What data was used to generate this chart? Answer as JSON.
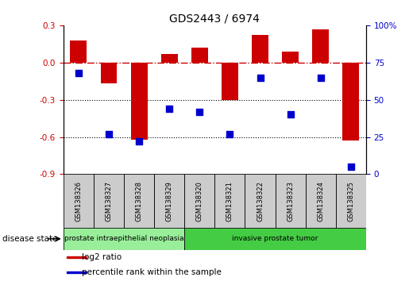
{
  "title": "GDS2443 / 6974",
  "samples": [
    "GSM138326",
    "GSM138327",
    "GSM138328",
    "GSM138329",
    "GSM138320",
    "GSM138321",
    "GSM138322",
    "GSM138323",
    "GSM138324",
    "GSM138325"
  ],
  "log2_ratio": [
    0.18,
    -0.17,
    -0.62,
    0.07,
    0.12,
    -0.3,
    0.22,
    0.09,
    0.27,
    -0.63
  ],
  "percentile_rank": [
    68,
    27,
    22,
    44,
    42,
    27,
    65,
    40,
    65,
    5
  ],
  "bar_color": "#cc0000",
  "dot_color": "#0000cc",
  "ylim_left": [
    -0.9,
    0.3
  ],
  "ylim_right": [
    0,
    100
  ],
  "yticks_left": [
    -0.9,
    -0.6,
    -0.3,
    0.0,
    0.3
  ],
  "yticks_right": [
    0,
    25,
    50,
    75,
    100
  ],
  "ytick_labels_right": [
    "0",
    "25",
    "50",
    "75",
    "100%"
  ],
  "hline_y": 0.0,
  "dotted_lines": [
    -0.3,
    -0.6
  ],
  "groups": [
    {
      "label": "prostate intraepithelial neoplasia",
      "start": 0,
      "end": 4,
      "color": "#99ee99"
    },
    {
      "label": "invasive prostate tumor",
      "start": 4,
      "end": 10,
      "color": "#44cc44"
    }
  ],
  "disease_state_label": "disease state",
  "legend_items": [
    {
      "color": "#cc0000",
      "label": "log2 ratio"
    },
    {
      "color": "#0000cc",
      "label": "percentile rank within the sample"
    }
  ],
  "bar_width": 0.55,
  "dot_size": 30,
  "title_color": "#000000",
  "left_tick_color": "#cc0000",
  "right_tick_color": "#0000cc",
  "sample_box_color": "#cccccc"
}
